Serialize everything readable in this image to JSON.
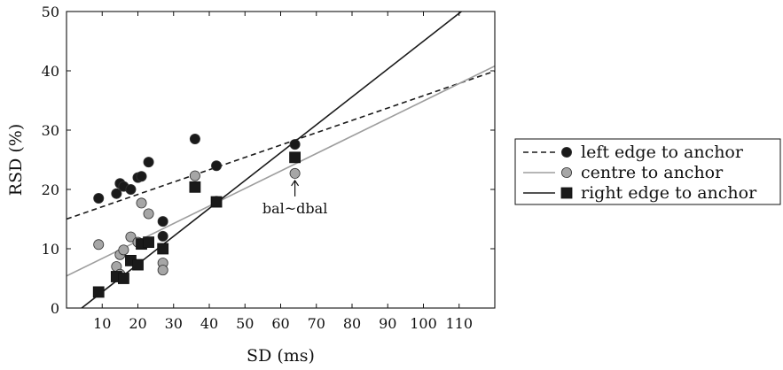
{
  "chart_data": {
    "type": "scatter",
    "xlabel": "SD (ms)",
    "ylabel": "RSD (%)",
    "xlim": [
      0,
      120
    ],
    "ylim": [
      0,
      50
    ],
    "x_ticks": [
      10,
      20,
      30,
      40,
      50,
      60,
      70,
      80,
      90,
      100,
      110
    ],
    "y_ticks": [
      0,
      10,
      20,
      30,
      40,
      50
    ],
    "grid": false,
    "legend_position": "right",
    "series": [
      {
        "name": "left edge to anchor",
        "marker": "circle",
        "marker_color": "#1a1a1a",
        "line_style": "dashed",
        "line_color": "#1a1a1a",
        "fit": {
          "intercept": 15.0,
          "slope": 0.208
        },
        "points": [
          [
            9,
            18.5
          ],
          [
            14,
            19.3
          ],
          [
            15,
            21.0
          ],
          [
            16,
            20.5
          ],
          [
            18,
            20.0
          ],
          [
            20,
            22.0
          ],
          [
            21,
            22.2
          ],
          [
            23,
            24.6
          ],
          [
            27,
            14.6
          ],
          [
            27,
            12.1
          ],
          [
            36,
            28.5
          ],
          [
            42,
            24.0
          ],
          [
            64,
            27.6
          ]
        ]
      },
      {
        "name": "centre to anchor",
        "marker": "circle",
        "marker_color": "#a6a6a6",
        "line_style": "solid",
        "line_color": "#9e9e9e",
        "fit": {
          "intercept": 5.4,
          "slope": 0.295
        },
        "points": [
          [
            9,
            10.7
          ],
          [
            14,
            7.0
          ],
          [
            15,
            9.0
          ],
          [
            15,
            5.7
          ],
          [
            16,
            9.8
          ],
          [
            18,
            12.0
          ],
          [
            20,
            11.1
          ],
          [
            21,
            17.7
          ],
          [
            23,
            15.9
          ],
          [
            27,
            7.6
          ],
          [
            27,
            6.4
          ],
          [
            36,
            22.3
          ],
          [
            42,
            18.0
          ],
          [
            64,
            22.7
          ]
        ]
      },
      {
        "name": "right edge to anchor",
        "marker": "square",
        "marker_color": "#1a1a1a",
        "line_style": "solid",
        "line_color": "#1a1a1a",
        "fit": {
          "intercept": -2.0,
          "slope": 0.47
        },
        "points": [
          [
            9,
            2.7
          ],
          [
            14,
            5.3
          ],
          [
            16,
            5.0
          ],
          [
            18,
            8.0
          ],
          [
            20,
            7.3
          ],
          [
            21,
            10.8
          ],
          [
            23,
            11.1
          ],
          [
            27,
            10.0
          ],
          [
            36,
            20.4
          ],
          [
            42,
            17.9
          ],
          [
            64,
            25.4
          ]
        ]
      }
    ],
    "annotations": [
      {
        "text": "bal~dbal",
        "x": 64,
        "y": 22.7
      }
    ]
  }
}
